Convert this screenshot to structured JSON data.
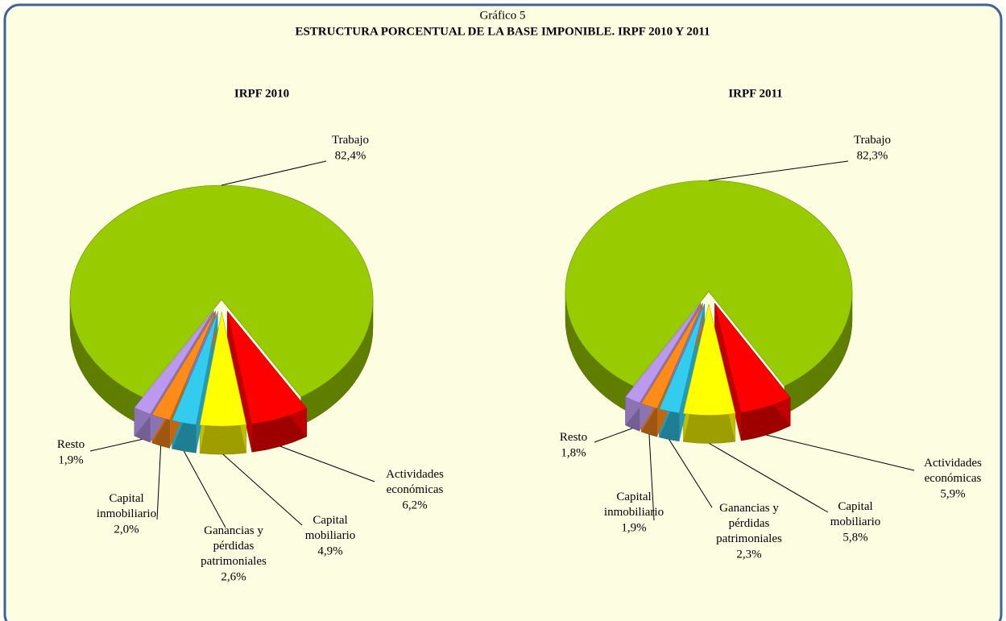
{
  "header": {
    "label": "Gráfico 5",
    "title": "ESTRUCTURA PORCENTUAL DE LA BASE IMPONIBLE. IRPF 2010 Y 2011"
  },
  "chart_data": [
    {
      "type": "pie",
      "title": "IRPF 2010",
      "categories": [
        "Trabajo",
        "Actividades económicas",
        "Capital mobiliario",
        "Ganancias y pérdidas patrimoniales",
        "Capital inmobiliario",
        "Resto"
      ],
      "values": [
        82.4,
        6.2,
        4.9,
        2.6,
        2.0,
        1.9
      ],
      "value_labels": [
        "82,4%",
        "6,2%",
        "4,9%",
        "2,6%",
        "2,0%",
        "1,9%"
      ],
      "colors": [
        "#99cc00",
        "#ff0000",
        "#ffff00",
        "#33ccee",
        "#ff8c1a",
        "#bb99ee"
      ]
    },
    {
      "type": "pie",
      "title": "IRPF 2011",
      "categories": [
        "Trabajo",
        "Actividades económicas",
        "Capital mobiliario",
        "Ganancias y pérdidas patrimoniales",
        "Capital inmobiliario",
        "Resto"
      ],
      "values": [
        82.3,
        5.9,
        5.8,
        2.3,
        1.9,
        1.8
      ],
      "value_labels": [
        "82,3%",
        "5,9%",
        "5,8%",
        "2,3%",
        "1,9%",
        "1,8%"
      ],
      "colors": [
        "#99cc00",
        "#ff0000",
        "#ffff00",
        "#33ccee",
        "#ff8c1a",
        "#bb99ee"
      ]
    }
  ]
}
